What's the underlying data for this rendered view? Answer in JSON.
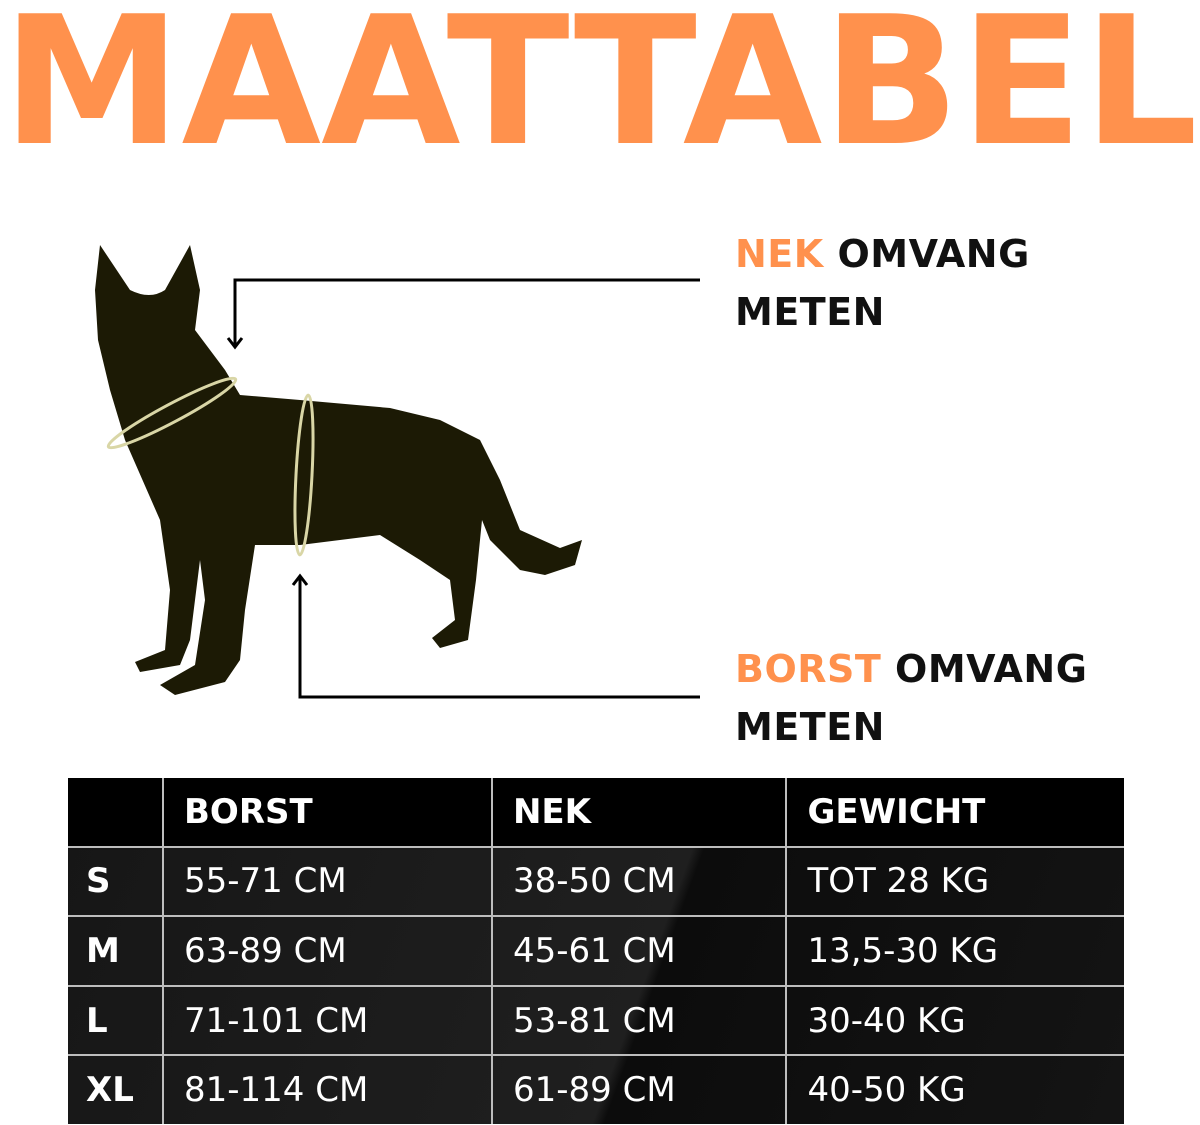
{
  "title": "MAATTABEL",
  "colors": {
    "accent": "#ff914d",
    "dog": "#1c1a05",
    "ring": "#d9d6a6",
    "table_bg": "#1a1a1a"
  },
  "labels": {
    "neck": {
      "accent": "NEK",
      "rest": " OMVANG",
      "line2": "METEN"
    },
    "chest": {
      "accent": "BORST",
      "rest": " OMVANG",
      "line2": "METEN"
    }
  },
  "table": {
    "headers": [
      "",
      "BORST",
      "NEK",
      "GEWICHT"
    ],
    "rows": [
      {
        "size": "S",
        "borst": "55-71 CM",
        "nek": "38-50 CM",
        "gewicht": "TOT 28 KG"
      },
      {
        "size": "M",
        "borst": "63-89 CM",
        "nek": "45-61 CM",
        "gewicht": "13,5-30 KG"
      },
      {
        "size": "L",
        "borst": "71-101 CM",
        "nek": "53-81 CM",
        "gewicht": "30-40 KG"
      },
      {
        "size": "XL",
        "borst": "81-114 CM",
        "nek": "61-89 CM",
        "gewicht": "40-50 KG"
      }
    ]
  }
}
